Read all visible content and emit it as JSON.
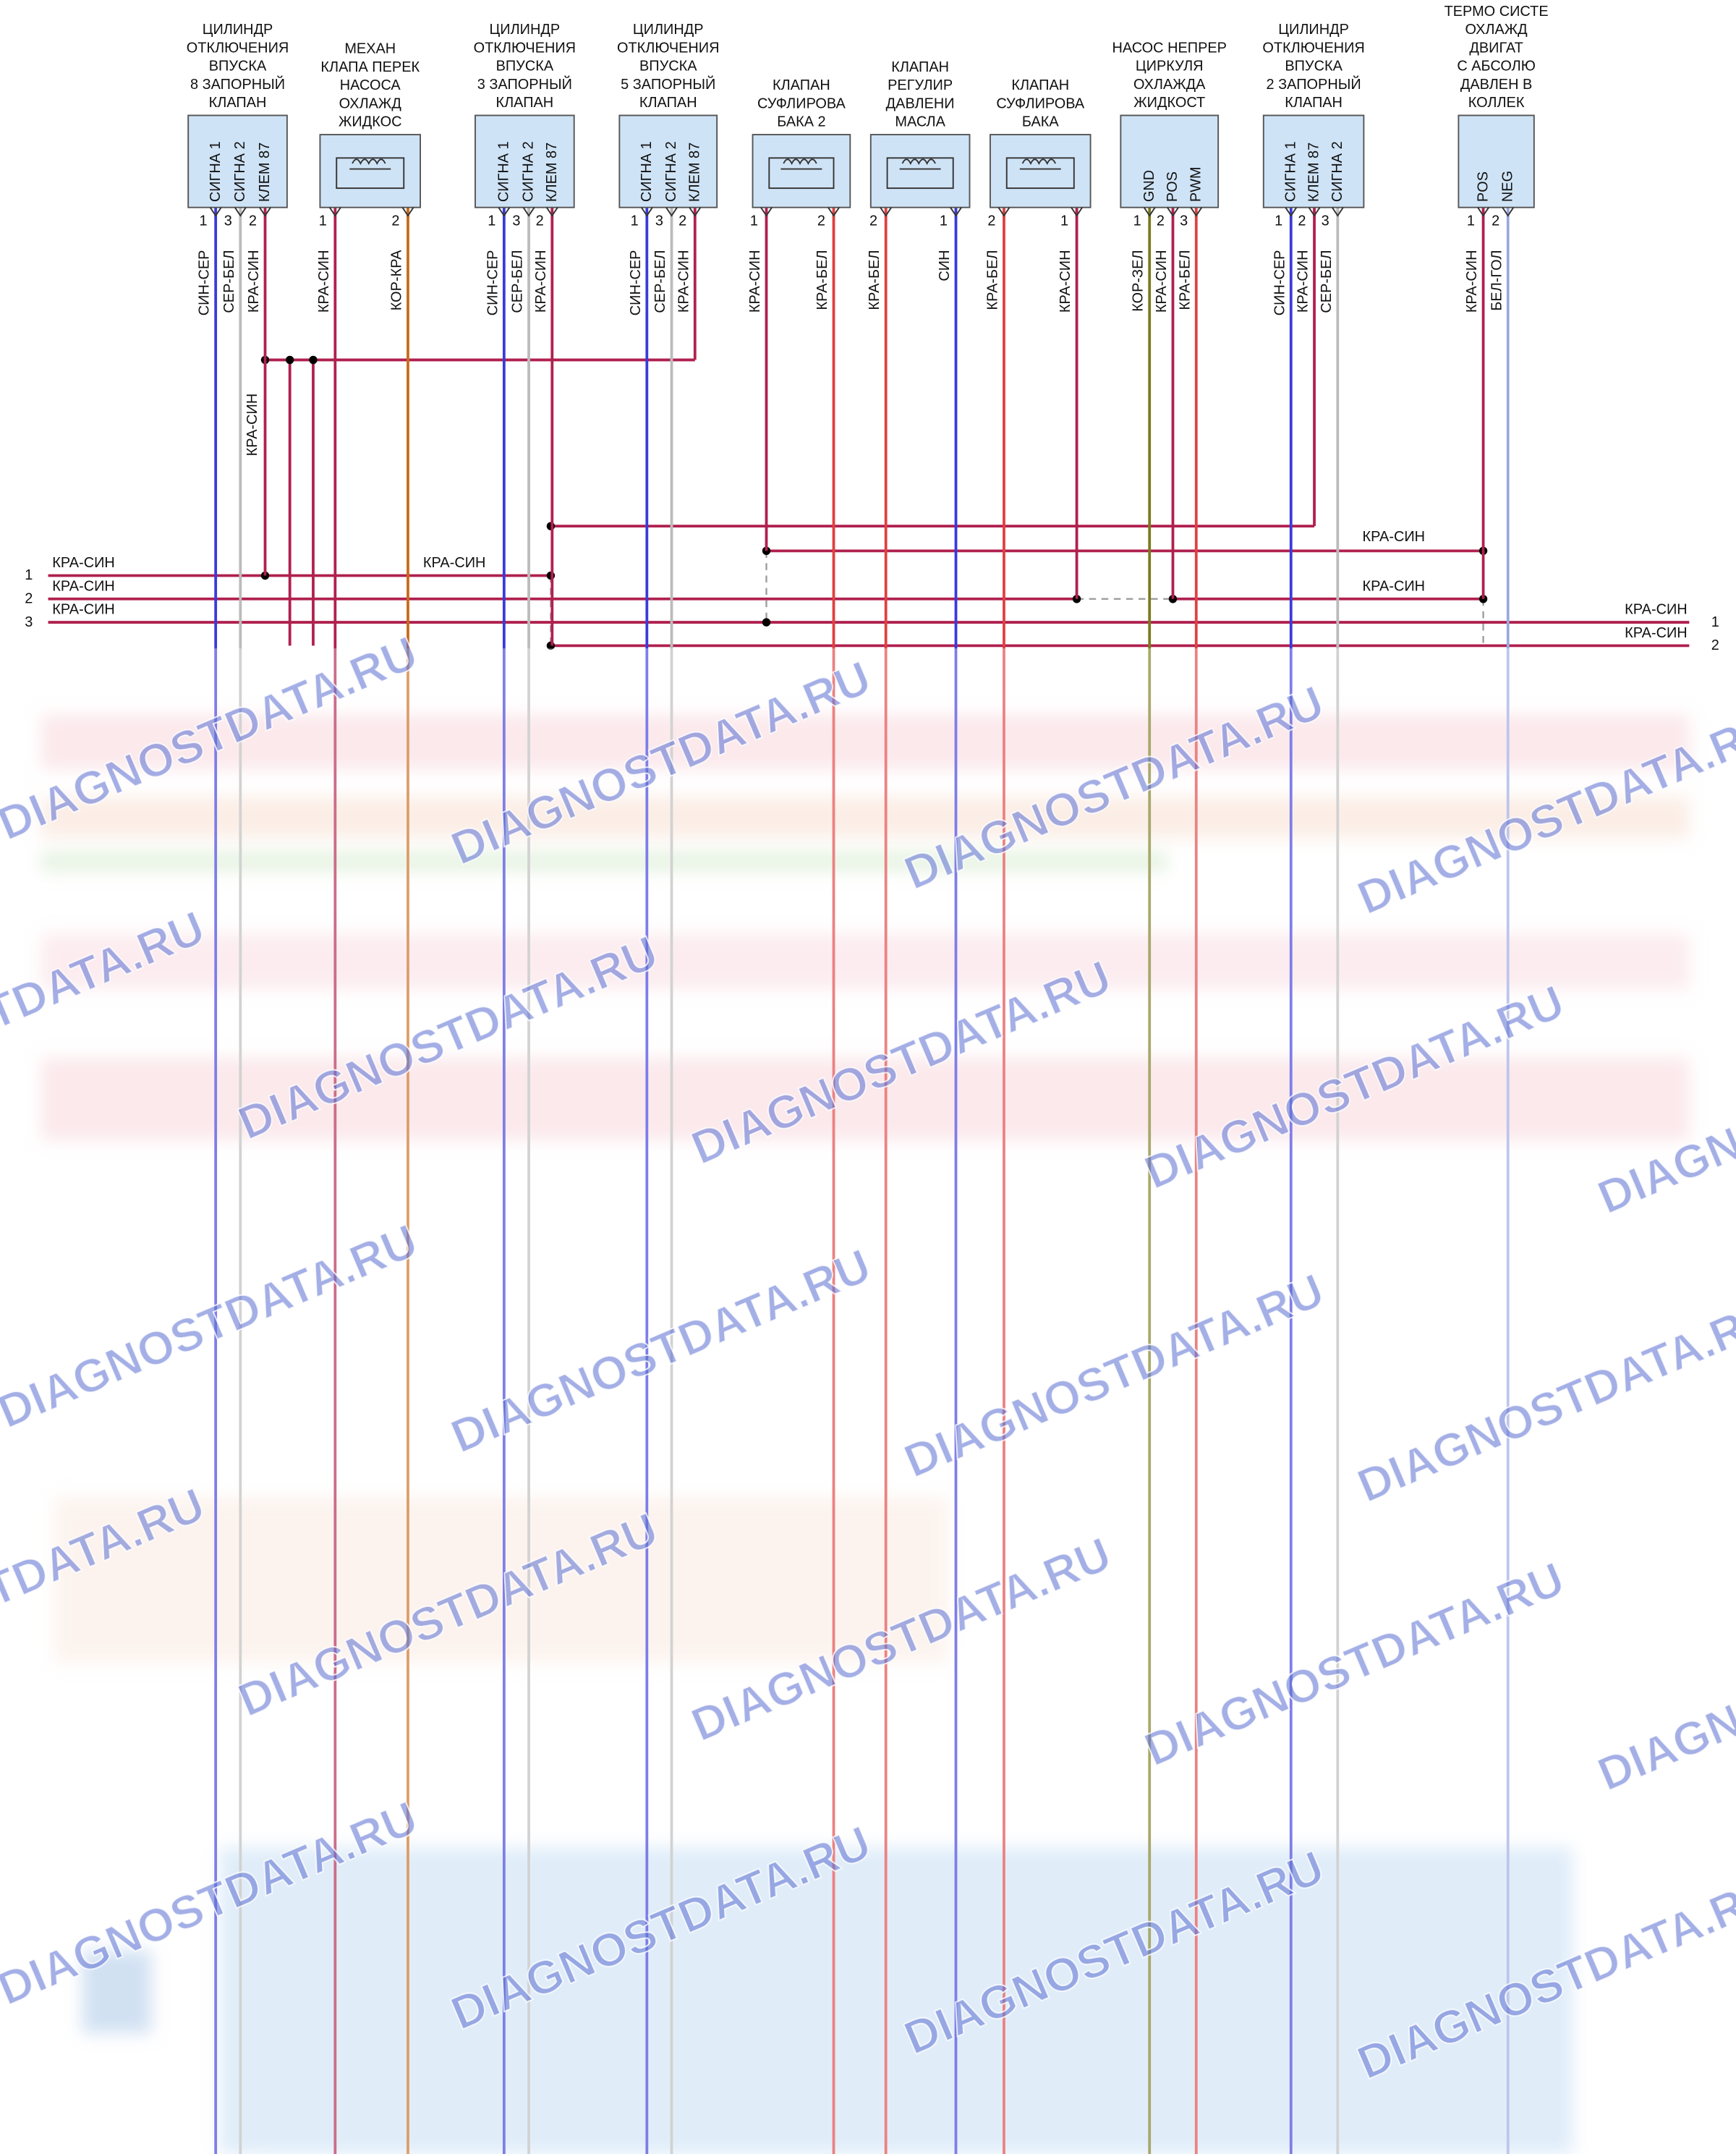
{
  "components": [
    {
      "label": [
        "ЦИЛИНДР",
        "ОТКЛЮЧЕНИЯ",
        "ВПУСКА",
        "8 ЗАПОРНЫЙ",
        "КЛАПАН"
      ],
      "pins": [
        {
          "name": "СИГНА 1",
          "number": "1"
        },
        {
          "name": "СИГНА 2",
          "number": "3"
        },
        {
          "name": "КЛЕМ 87",
          "number": "2"
        }
      ],
      "wires": [
        "СИН-СЕР",
        "СЕР-БЕЛ",
        "КРА-СИН"
      ]
    },
    {
      "label": [
        "МЕХАН",
        "КЛАПА ПЕРЕК",
        "НАСОСА",
        "ОХЛАЖД",
        "ЖИДКОС"
      ],
      "pins": [
        {
          "number": "1"
        },
        {
          "number": "2"
        }
      ],
      "wires": [
        "КРА-СИН",
        "КОР-КРА"
      ]
    },
    {
      "label": [
        "ЦИЛИНДР",
        "ОТКЛЮЧЕНИЯ",
        "ВПУСКА",
        "3 ЗАПОРНЫЙ",
        "КЛАПАН"
      ],
      "pins": [
        {
          "name": "СИГНА 1",
          "number": "1"
        },
        {
          "name": "СИГНА 2",
          "number": "3"
        },
        {
          "name": "КЛЕМ 87",
          "number": "2"
        }
      ],
      "wires": [
        "СИН-СЕР",
        "СЕР-БЕЛ",
        "КРА-СИН"
      ]
    },
    {
      "label": [
        "ЦИЛИНДР",
        "ОТКЛЮЧЕНИЯ",
        "ВПУСКА",
        "5 ЗАПОРНЫЙ",
        "КЛАПАН"
      ],
      "pins": [
        {
          "name": "СИГНА 1",
          "number": "1"
        },
        {
          "name": "СИГНА 2",
          "number": "3"
        },
        {
          "name": "КЛЕМ 87",
          "number": "2"
        }
      ],
      "wires": [
        "СИН-СЕР",
        "СЕР-БЕЛ",
        "КРА-СИН"
      ]
    },
    {
      "label": [
        "КЛАПАН",
        "СУФЛИРОВА",
        "БАКА 2"
      ],
      "pins": [
        {
          "number": "1"
        },
        {
          "number": "2"
        }
      ],
      "wires": [
        "КРА-СИН",
        "КРА-БЕЛ"
      ]
    },
    {
      "label": [
        "КЛАПАН",
        "РЕГУЛИР",
        "ДАВЛЕНИ",
        "МАСЛА"
      ],
      "pins": [
        {
          "number": "2"
        },
        {
          "number": "1"
        }
      ],
      "wires": [
        "КРА-БЕЛ",
        "СИН"
      ]
    },
    {
      "label": [
        "КЛАПАН",
        "СУФЛИРОВА",
        "БАКА"
      ],
      "pins": [
        {
          "number": "2"
        },
        {
          "number": "1"
        }
      ],
      "wires": [
        "КРА-БЕЛ",
        "КРА-СИН"
      ]
    },
    {
      "label": [
        "НАСОС НЕПРЕР",
        "ЦИРКУЛЯ",
        "ОХЛАЖДА",
        "ЖИДКОСТ"
      ],
      "pins": [
        {
          "name": "GND",
          "number": "1"
        },
        {
          "name": "POS",
          "number": "2"
        },
        {
          "name": "PWM",
          "number": "3"
        }
      ],
      "wires": [
        "КОР-ЗЕЛ",
        "КРА-СИН",
        "КРА-БЕЛ"
      ]
    },
    {
      "label": [
        "ЦИЛИНДР",
        "ОТКЛЮЧЕНИЯ",
        "ВПУСКА",
        "2 ЗАПОРНЫЙ",
        "КЛАПАН"
      ],
      "pins": [
        {
          "name": "СИГНА 1",
          "number": "1"
        },
        {
          "name": "КЛЕМ 87",
          "number": "2"
        },
        {
          "name": "СИГНА 2",
          "number": "3"
        }
      ],
      "wires": [
        "СИН-СЕР",
        "КРА-СИН",
        "СЕР-БЕЛ"
      ]
    },
    {
      "label": [
        "ТЕРМО СИСТЕ",
        "ОХЛАЖД",
        "ДВИГАТ",
        "С АБСОЛЮ",
        "ДАВЛЕН В",
        "КОЛЛЕК"
      ],
      "pins": [
        {
          "name": "POS",
          "number": "1"
        },
        {
          "name": "NEG",
          "number": "2"
        }
      ],
      "wires": [
        "КРА-СИН",
        "БЕЛ-ГОЛ"
      ]
    }
  ],
  "bus_left": [
    {
      "number": "1",
      "wire": "КРА-СИН"
    },
    {
      "number": "2",
      "wire": "КРА-СИН"
    },
    {
      "number": "3",
      "wire": "КРА-СИН"
    }
  ],
  "bus_right": [
    {
      "number": "1",
      "wire": "КРА-СИН"
    },
    {
      "number": "2",
      "wire": "КРА-СИН"
    }
  ],
  "splice_labels": [
    "КРА-СИН",
    "КРА-СИН",
    "КРА-СИН",
    "КРА-СИН"
  ],
  "watermark": "DIAGNOSTDATA.RU"
}
